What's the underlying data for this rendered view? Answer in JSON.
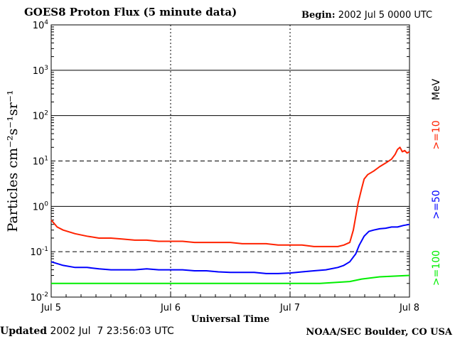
{
  "header": {
    "title": "GOES8 Proton Flux (5 minute data)",
    "begin_label": "Begin:",
    "begin_value": "2002 Jul 5 0000 UTC"
  },
  "footer": {
    "updated_label": "Updated",
    "updated_value": "2002 Jul  7 23:56:03 UTC",
    "credit": "NOAA/SEC Boulder, CO USA"
  },
  "chart_data": {
    "type": "line",
    "title": "GOES8 Proton Flux (5 minute data)",
    "xlabel": "Universal Time",
    "ylabel": "Particles cm⁻²s⁻¹sr⁻¹",
    "x_unit": "days",
    "xlim": [
      "2002-07-05 00:00",
      "2002-07-08 00:00"
    ],
    "x_tick_labels": [
      "Jul 5",
      "Jul 6",
      "Jul 7",
      "Jul 8"
    ],
    "y_scale": "log",
    "ylim": [
      0.01,
      10000
    ],
    "y_tick_labels": [
      {
        "base": "10",
        "exp": "-2"
      },
      {
        "base": "10",
        "exp": "-1"
      },
      {
        "base": "10",
        "exp": "0"
      },
      {
        "base": "10",
        "exp": "1"
      },
      {
        "base": "10",
        "exp": "2"
      },
      {
        "base": "10",
        "exp": "3"
      },
      {
        "base": "10",
        "exp": "4"
      }
    ],
    "threshold_lines": [
      {
        "value": 10,
        "style": "dashed"
      },
      {
        "value": 0.1,
        "style": "dashed"
      }
    ],
    "legend_unit": "MeV",
    "series": [
      {
        "name": ">=10",
        "color": "#ff2200",
        "points": [
          [
            0.0,
            0.5
          ],
          [
            0.05,
            0.35
          ],
          [
            0.1,
            0.3
          ],
          [
            0.2,
            0.25
          ],
          [
            0.3,
            0.22
          ],
          [
            0.4,
            0.2
          ],
          [
            0.5,
            0.2
          ],
          [
            0.6,
            0.19
          ],
          [
            0.7,
            0.18
          ],
          [
            0.8,
            0.18
          ],
          [
            0.9,
            0.17
          ],
          [
            1.0,
            0.17
          ],
          [
            1.1,
            0.17
          ],
          [
            1.2,
            0.16
          ],
          [
            1.3,
            0.16
          ],
          [
            1.4,
            0.16
          ],
          [
            1.5,
            0.16
          ],
          [
            1.6,
            0.15
          ],
          [
            1.7,
            0.15
          ],
          [
            1.8,
            0.15
          ],
          [
            1.9,
            0.14
          ],
          [
            2.0,
            0.14
          ],
          [
            2.1,
            0.14
          ],
          [
            2.2,
            0.13
          ],
          [
            2.3,
            0.13
          ],
          [
            2.4,
            0.13
          ],
          [
            2.45,
            0.14
          ],
          [
            2.5,
            0.16
          ],
          [
            2.53,
            0.3
          ],
          [
            2.55,
            0.6
          ],
          [
            2.57,
            1.2
          ],
          [
            2.6,
            2.5
          ],
          [
            2.62,
            4.0
          ],
          [
            2.65,
            5.0
          ],
          [
            2.7,
            6.0
          ],
          [
            2.75,
            7.5
          ],
          [
            2.8,
            9.0
          ],
          [
            2.85,
            11.0
          ],
          [
            2.88,
            14.0
          ],
          [
            2.9,
            18.0
          ],
          [
            2.92,
            20.0
          ],
          [
            2.94,
            16.0
          ],
          [
            2.96,
            17.0
          ],
          [
            2.98,
            15.0
          ],
          [
            3.0,
            16.0
          ]
        ]
      },
      {
        "name": ">=50",
        "color": "#0000ff",
        "points": [
          [
            0.0,
            0.06
          ],
          [
            0.1,
            0.05
          ],
          [
            0.2,
            0.045
          ],
          [
            0.3,
            0.045
          ],
          [
            0.4,
            0.042
          ],
          [
            0.5,
            0.04
          ],
          [
            0.6,
            0.04
          ],
          [
            0.7,
            0.04
          ],
          [
            0.8,
            0.042
          ],
          [
            0.9,
            0.04
          ],
          [
            1.0,
            0.04
          ],
          [
            1.1,
            0.04
          ],
          [
            1.2,
            0.038
          ],
          [
            1.3,
            0.038
          ],
          [
            1.4,
            0.036
          ],
          [
            1.5,
            0.035
          ],
          [
            1.6,
            0.035
          ],
          [
            1.7,
            0.035
          ],
          [
            1.8,
            0.033
          ],
          [
            1.9,
            0.033
          ],
          [
            2.0,
            0.034
          ],
          [
            2.1,
            0.036
          ],
          [
            2.2,
            0.038
          ],
          [
            2.3,
            0.04
          ],
          [
            2.4,
            0.045
          ],
          [
            2.45,
            0.05
          ],
          [
            2.5,
            0.06
          ],
          [
            2.55,
            0.09
          ],
          [
            2.58,
            0.14
          ],
          [
            2.62,
            0.22
          ],
          [
            2.66,
            0.28
          ],
          [
            2.7,
            0.3
          ],
          [
            2.75,
            0.32
          ],
          [
            2.8,
            0.33
          ],
          [
            2.85,
            0.35
          ],
          [
            2.9,
            0.35
          ],
          [
            2.95,
            0.38
          ],
          [
            3.0,
            0.4
          ]
        ]
      },
      {
        "name": ">=100",
        "color": "#00ee00",
        "points": [
          [
            0.0,
            0.02
          ],
          [
            0.25,
            0.02
          ],
          [
            0.5,
            0.02
          ],
          [
            0.75,
            0.02
          ],
          [
            1.0,
            0.02
          ],
          [
            1.25,
            0.02
          ],
          [
            1.5,
            0.02
          ],
          [
            1.75,
            0.02
          ],
          [
            2.0,
            0.02
          ],
          [
            2.25,
            0.02
          ],
          [
            2.5,
            0.022
          ],
          [
            2.6,
            0.025
          ],
          [
            2.75,
            0.028
          ],
          [
            3.0,
            0.03
          ]
        ]
      }
    ]
  }
}
